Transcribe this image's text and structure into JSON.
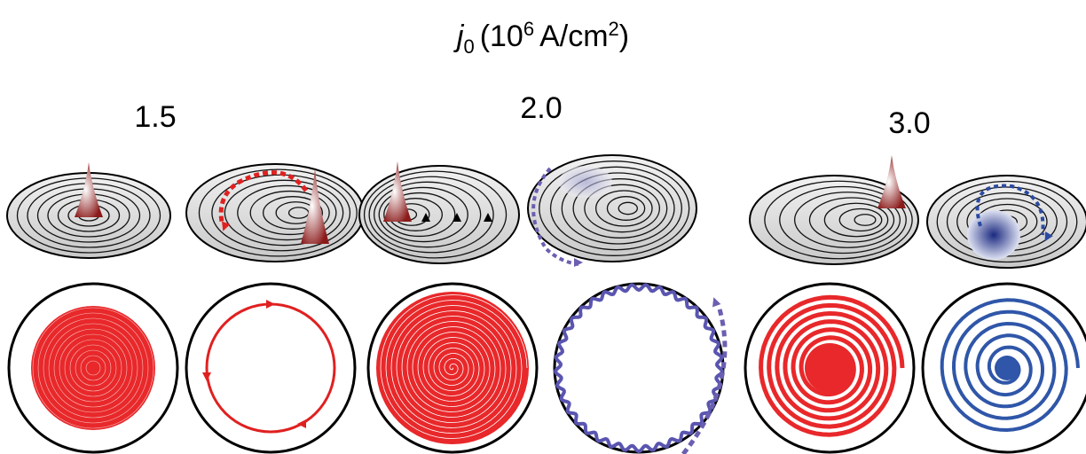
{
  "header": {
    "symbol": "j",
    "subscript": "0",
    "open": "(10",
    "exponent": "6",
    "unit": "A/cm",
    "unit_exponent": "2",
    "close": ")"
  },
  "columns": [
    {
      "label": "1.5"
    },
    {
      "label": "2.0"
    },
    {
      "label": "3.0"
    }
  ]
}
